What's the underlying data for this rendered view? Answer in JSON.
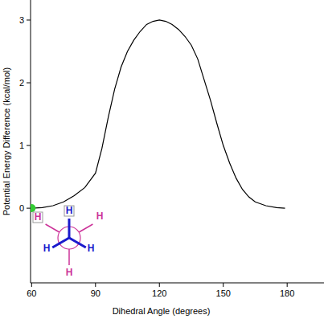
{
  "chart_data": {
    "type": "line",
    "xlabel": "Dihedral Angle (degrees)",
    "ylabel": "Potential Energy Difference (kcal/mol)",
    "xlim": [
      59.5,
      197.3
    ],
    "xticks": [
      60,
      90,
      120,
      150,
      180
    ],
    "ylim": [
      -1.19,
      3.32
    ],
    "yticks": [
      0,
      1,
      2,
      3
    ],
    "grid": false,
    "series": [
      {
        "type": "line",
        "color": "#000000",
        "marker": "none",
        "line_style": "solid",
        "x": [
          60,
          65,
          70,
          75,
          80,
          85,
          90,
          93,
          96,
          99,
          102,
          105,
          108,
          111,
          114,
          117,
          120,
          123,
          126,
          129,
          132,
          135,
          138,
          141,
          144,
          147,
          150,
          153,
          156,
          159,
          162,
          165,
          170,
          175,
          179
        ],
        "values": [
          0,
          0.01,
          0.04,
          0.1,
          0.2,
          0.33,
          0.56,
          0.95,
          1.45,
          1.9,
          2.25,
          2.5,
          2.68,
          2.82,
          2.93,
          2.98,
          3.0,
          2.98,
          2.93,
          2.85,
          2.74,
          2.6,
          2.38,
          2.05,
          1.72,
          1.35,
          1.0,
          0.72,
          0.48,
          0.3,
          0.18,
          0.1,
          0.04,
          0.01,
          0
        ]
      },
      {
        "type": "scatter",
        "color": "#33cc33",
        "marker": "circle",
        "x": [
          60
        ],
        "values": [
          0
        ]
      }
    ],
    "annotations": {
      "front": [
        "H",
        "H",
        "H"
      ],
      "back": [
        "H",
        "H",
        "H"
      ]
    }
  }
}
